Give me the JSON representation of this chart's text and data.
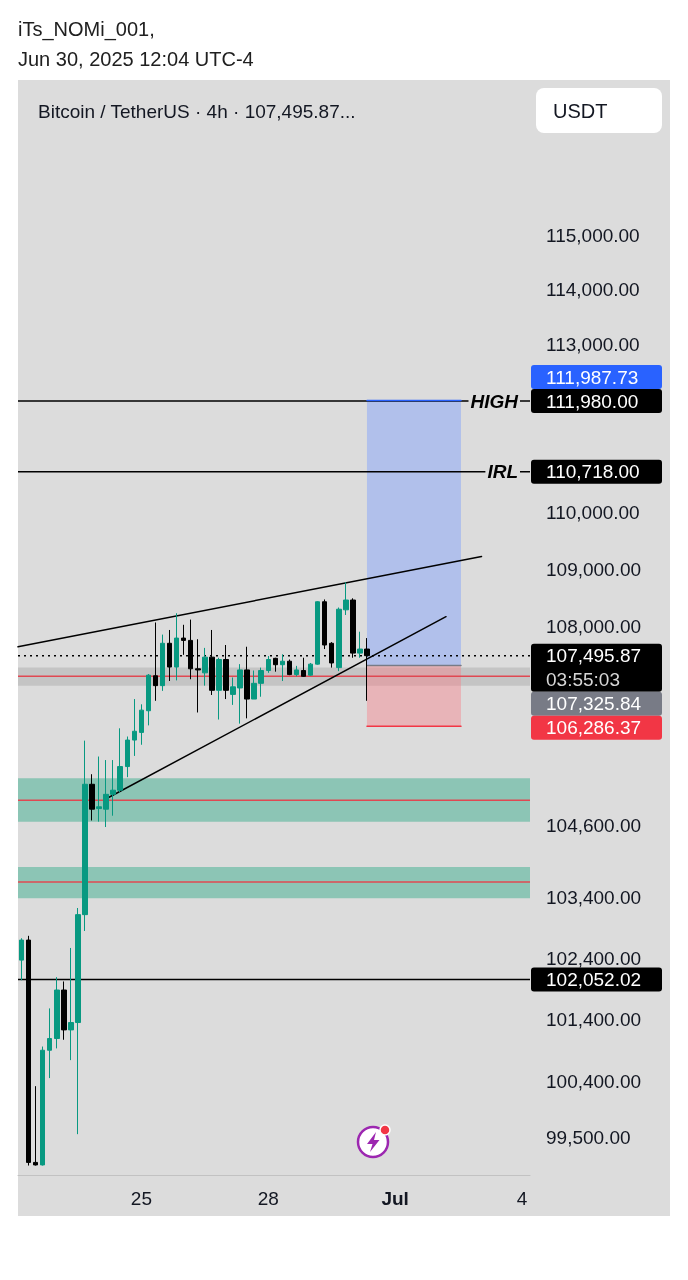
{
  "chart_data": {
    "type": "candlestick",
    "title": "Bitcoin / TetherUS · 4h · 107,495.87...",
    "ylabel": "USDT",
    "annotations": [
      "iTs_NOMi_001,",
      "Jun 30, 2025 12:04 UTC-4",
      "111,987.73",
      "106,286.37",
      "107,325.84",
      {
        "text": "111,980.00",
        "x": "2025-07-04T04:30",
        "y": 111980
      },
      {
        "text": "110,718.00",
        "x": "2025-07-04T04:30",
        "y": 110718
      },
      {
        "text": "107,495.87",
        "x": "2025-07-04T04:30",
        "y": 107495.87
      },
      {
        "text": "03:55:03",
        "x": "2025-07-04T04:30",
        "y": 107495.87
      },
      {
        "text": "102,052.02",
        "x": "2025-07-04T04:30",
        "y": 102052.02
      }
    ],
    "x": [
      "2025-06-22T04:00",
      "2025-06-22T08:00",
      "2025-06-22T12:00",
      "2025-06-22T16:00",
      "2025-06-22T20:00",
      "2025-06-23T00:00",
      "2025-06-23T04:00",
      "2025-06-23T08:00",
      "2025-06-23T12:00",
      "2025-06-23T16:00",
      "2025-06-23T20:00",
      "2025-06-24T00:00",
      "2025-06-24T04:00",
      "2025-06-24T08:00",
      "2025-06-24T12:00",
      "2025-06-24T16:00",
      "2025-06-24T20:00",
      "2025-06-25T00:00",
      "2025-06-25T04:00",
      "2025-06-25T08:00",
      "2025-06-25T12:00",
      "2025-06-25T16:00",
      "2025-06-25T20:00",
      "2025-06-26T00:00",
      "2025-06-26T04:00",
      "2025-06-26T08:00",
      "2025-06-26T12:00",
      "2025-06-26T16:00",
      "2025-06-26T20:00",
      "2025-06-27T00:00",
      "2025-06-27T04:00",
      "2025-06-27T08:00",
      "2025-06-27T12:00",
      "2025-06-27T16:00",
      "2025-06-27T20:00",
      "2025-06-28T00:00",
      "2025-06-28T04:00",
      "2025-06-28T08:00",
      "2025-06-28T12:00",
      "2025-06-28T16:00",
      "2025-06-28T20:00",
      "2025-06-29T00:00",
      "2025-06-29T04:00",
      "2025-06-29T08:00",
      "2025-06-29T12:00",
      "2025-06-29T16:00",
      "2025-06-29T20:00",
      "2025-06-30T00:00",
      "2025-06-30T04:00",
      "2025-06-30T08:00"
    ],
    "ohlc": [
      [
        102370,
        102730,
        102040,
        102700
      ],
      [
        102700,
        102770,
        99050,
        99100
      ],
      [
        99100,
        100320,
        99050,
        99060
      ],
      [
        99060,
        100960,
        99050,
        100900
      ],
      [
        100900,
        101580,
        100450,
        101090
      ],
      [
        101090,
        102090,
        100930,
        101880
      ],
      [
        101880,
        102020,
        101070,
        101230
      ],
      [
        101230,
        102570,
        100740,
        101350
      ],
      [
        101350,
        103230,
        99550,
        103120
      ],
      [
        103120,
        106040,
        102850,
        105300
      ],
      [
        105300,
        105470,
        104690,
        104880
      ],
      [
        104890,
        105770,
        104670,
        104920
      ],
      [
        104880,
        105710,
        104580,
        105130
      ],
      [
        105130,
        105710,
        104770,
        105200
      ],
      [
        105200,
        106250,
        105160,
        105600
      ],
      [
        105600,
        106110,
        105420,
        106050
      ],
      [
        106050,
        106750,
        105780,
        106200
      ],
      [
        106180,
        106660,
        105970,
        106560
      ],
      [
        106550,
        107180,
        106300,
        107160
      ],
      [
        107150,
        108070,
        106720,
        106980
      ],
      [
        106980,
        107860,
        106890,
        107710
      ],
      [
        107710,
        107940,
        107060,
        107300
      ],
      [
        107300,
        108230,
        107070,
        107800
      ],
      [
        107800,
        108030,
        107510,
        107760
      ],
      [
        107760,
        108120,
        107090,
        107270
      ],
      [
        107270,
        107780,
        106520,
        107250
      ],
      [
        107200,
        107630,
        106980,
        107470
      ],
      [
        107470,
        107940,
        106820,
        106900
      ],
      [
        106900,
        107460,
        106400,
        107430
      ],
      [
        107430,
        107680,
        106750,
        106900
      ],
      [
        106830,
        107120,
        106650,
        106960
      ],
      [
        106940,
        107350,
        106330,
        107250
      ],
      [
        107250,
        107650,
        106420,
        106750
      ],
      [
        106750,
        107240,
        106750,
        107020
      ],
      [
        107020,
        107290,
        106790,
        107240
      ],
      [
        107240,
        107490,
        107200,
        107430
      ],
      [
        107450,
        107460,
        107220,
        107340
      ],
      [
        107340,
        107520,
        107060,
        107400
      ],
      [
        107400,
        107430,
        107160,
        107170
      ],
      [
        107170,
        107320,
        107140,
        107250
      ],
      [
        107240,
        107460,
        107130,
        107140
      ],
      [
        107160,
        107370,
        107150,
        107350
      ],
      [
        107350,
        108440,
        107340,
        108430
      ],
      [
        108430,
        108470,
        107610,
        107680
      ],
      [
        107710,
        107730,
        107290,
        107370
      ],
      [
        107290,
        108330,
        107230,
        108300
      ],
      [
        108290,
        108770,
        108200,
        108460
      ],
      [
        108460,
        108490,
        107460,
        107540
      ],
      [
        107540,
        107910,
        107460,
        107610
      ],
      [
        107610,
        107800,
        106720,
        107495.87
      ]
    ],
    "colors": [
      "#089981",
      "#000000",
      "#000000",
      "#089981",
      "#089981",
      "#089981",
      "#000000",
      "#089981",
      "#089981",
      "#089981",
      "#000000",
      "#089981",
      "#089981",
      "#089981",
      "#089981",
      "#089981",
      "#089981",
      "#089981",
      "#089981",
      "#000000",
      "#089981",
      "#000000",
      "#089981",
      "#000000",
      "#000000",
      "#000000",
      "#089981",
      "#000000",
      "#089981",
      "#000000",
      "#089981",
      "#089981",
      "#000000",
      "#089981",
      "#089981",
      "#089981",
      "#000000",
      "#089981",
      "#000000",
      "#089981",
      "#000000",
      "#089981",
      "#089981",
      "#000000",
      "#000000",
      "#089981",
      "#089981",
      "#000000",
      "#089981",
      "#000000"
    ],
    "series": [
      {
        "type": "line",
        "color": "#000000",
        "x": [
          "2025-06-22T02:00",
          "2025-07-03T01:00"
        ],
        "values": [
          107650,
          109220
        ]
      },
      {
        "type": "line",
        "color": "#000000",
        "x": [
          "2025-06-24T04:20",
          "2025-07-02T04:50"
        ],
        "values": [
          105060,
          108170
        ]
      },
      {
        "type": "line",
        "color": "#2962ff",
        "x": [
          "2025-06-30T08:00",
          "2025-07-02T13:20"
        ],
        "values": [
          111987.73,
          111987.73
        ],
        "lower": [
          107325.84,
          107325.84
        ],
        "upper": [
          111987.73,
          111987.73
        ]
      },
      {
        "type": "line",
        "color": "#f23645",
        "x": [
          "2025-06-30T08:00",
          "2025-07-02T13:20"
        ],
        "values": [
          106286.37,
          106286.37
        ],
        "lower": [
          106286.37,
          106286.37
        ],
        "upper": [
          107325.84,
          107325.84
        ]
      },
      {
        "type": "line",
        "color": "#787b86",
        "x": [
          "2025-06-30T08:00",
          "2025-07-02T13:20"
        ],
        "values": [
          107325.84,
          107325.84
        ]
      }
    ],
    "xlim": [
      "2025-06-22T02:00",
      "2025-07-04T04:30"
    ],
    "xticks": [
      {
        "value": "2025-06-25",
        "label": "25"
      },
      {
        "value": "2025-06-28",
        "label": "28"
      },
      {
        "value": "2025-07-01",
        "label": "Jul"
      },
      {
        "value": "2025-07-04",
        "label": "4"
      }
    ],
    "ylim": [
      98900,
      117900
    ],
    "log": "y",
    "yticks": [
      {
        "value": 115000,
        "label": "115,000.00"
      },
      {
        "value": 114000,
        "label": "114,000.00"
      },
      {
        "value": 113000,
        "label": "113,000.00"
      },
      {
        "value": 110000,
        "label": "110,000.00"
      },
      {
        "value": 109000,
        "label": "109,000.00"
      },
      {
        "value": 108000,
        "label": "108,000.00"
      },
      {
        "value": 104600,
        "label": "104,600.00"
      },
      {
        "value": 103400,
        "label": "103,400.00"
      },
      {
        "value": 102400,
        "label": "102,400.00"
      },
      {
        "value": 101400,
        "label": "101,400.00"
      },
      {
        "value": 100400,
        "label": "100,400.00"
      },
      {
        "value": 99500,
        "label": "99,500.00"
      }
    ],
    "ref_lines": [
      {
        "axis": "y",
        "value": 111980,
        "label": "HIGH",
        "color": "#000000"
      },
      {
        "axis": "y",
        "value": 110718,
        "label": "IRL",
        "color": "#000000"
      },
      {
        "axis": "y",
        "value": 107495.87,
        "color": "#000000",
        "line_style": "dotted"
      },
      {
        "axis": "y",
        "value": 102052.02,
        "color": "#000000"
      },
      {
        "axis": "y",
        "value": 105030,
        "color": "#e04852"
      },
      {
        "axis": "y",
        "value": 103660,
        "color": "#e04852"
      },
      {
        "axis": "y",
        "value": 107140,
        "color": "#e04852"
      }
    ],
    "bands": [
      {
        "axis": "y",
        "from": 104670,
        "to": 105400,
        "color": "#8cc5b5"
      },
      {
        "axis": "y",
        "from": 103390,
        "to": 103910,
        "color": "#8cc5b5"
      },
      {
        "axis": "y",
        "from": 106980,
        "to": 107290,
        "color": "#c4c4c4"
      }
    ]
  }
}
